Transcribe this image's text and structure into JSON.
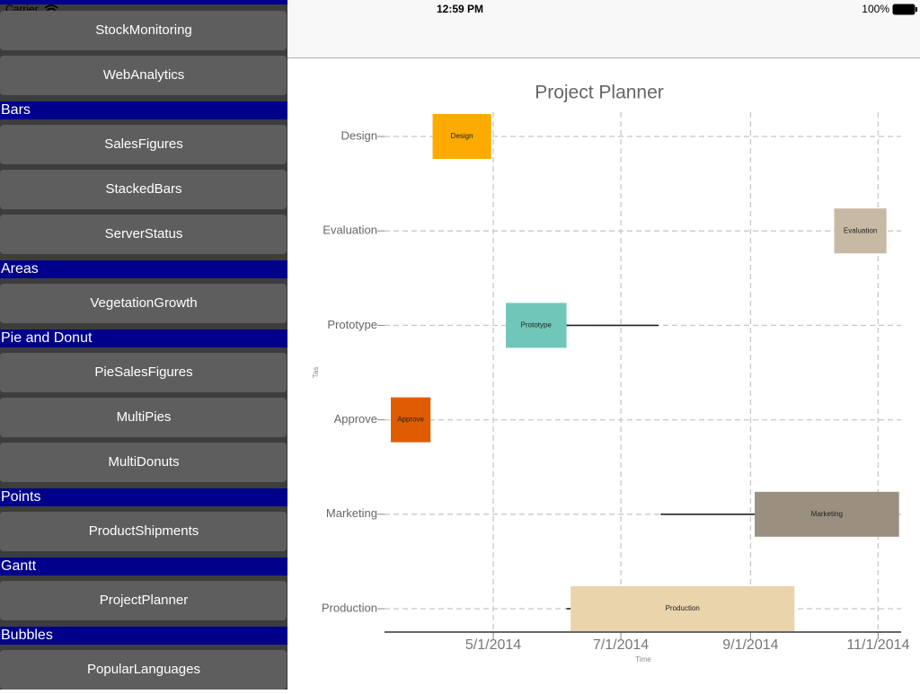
{
  "status_bar": {
    "carrier": "Carrier",
    "time": "12:59 PM",
    "battery": "100%"
  },
  "sidebar": {
    "top_items": [
      "StockMonitoring",
      "WebAnalytics"
    ],
    "sections": [
      {
        "title": "Bars",
        "items": [
          "SalesFigures",
          "StackedBars",
          "ServerStatus"
        ]
      },
      {
        "title": "Areas",
        "items": [
          "VegetationGrowth"
        ]
      },
      {
        "title": "Pie and Donut",
        "items": [
          "PieSalesFigures",
          "MultiPies",
          "MultiDonuts"
        ]
      },
      {
        "title": "Points",
        "items": [
          "ProductShipments"
        ]
      },
      {
        "title": "Gantt",
        "items": [
          "ProjectPlanner"
        ]
      },
      {
        "title": "Bubbles",
        "items": [
          "PopularLanguages"
        ]
      }
    ]
  },
  "chart_data": {
    "type": "gantt",
    "title": "Project Planner",
    "x_label": "Time",
    "y_label": "Tas",
    "categories": [
      "Design",
      "Evaluation",
      "Prototype",
      "Approve",
      "Marketing",
      "Production"
    ],
    "start": [
      "2014-04-02",
      "2014-10-11",
      "2014-05-07",
      "2014-03-13",
      "2014-09-03",
      "2014-06-07"
    ],
    "end": [
      "2014-04-30",
      "2014-11-05",
      "2014-06-05",
      "2014-04-01",
      "2014-11-11",
      "2014-09-22"
    ],
    "line_start": [
      null,
      null,
      "2014-06-05",
      null,
      "2014-07-20",
      "2014-06-05"
    ],
    "line_end": [
      null,
      null,
      "2014-07-19",
      null,
      "2014-09-03",
      "2014-06-07"
    ],
    "colors": [
      "#fdab00",
      "#c8b9a5",
      "#70c6b8",
      "#df5c00",
      "#9b8f80",
      "#e9d4ac"
    ],
    "xlim": [
      "2014-03-10",
      "2014-11-12"
    ],
    "xticks": [
      {
        "value": "2014-05-01",
        "label": "5/1/2014"
      },
      {
        "value": "2014-07-01",
        "label": "7/1/2014"
      },
      {
        "value": "2014-09-01",
        "label": "9/1/2014"
      },
      {
        "value": "2014-11-01",
        "label": "11/1/2014"
      }
    ],
    "grid": true
  }
}
